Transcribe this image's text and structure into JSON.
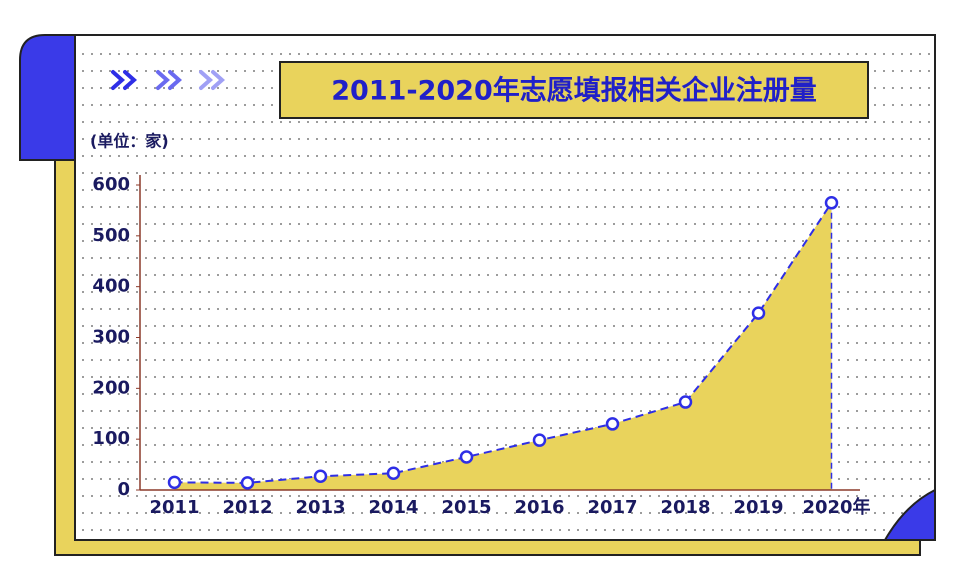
{
  "chart_data": {
    "type": "line",
    "title": "2011-2020年志愿填报相关企业注册量",
    "unit_label": "(单位：家)",
    "categories": [
      "2011",
      "2012",
      "2013",
      "2014",
      "2015",
      "2016",
      "2017",
      "2018",
      "2019",
      "2020年"
    ],
    "series": [
      {
        "name": "企业注册量",
        "color": "#2e2ee6",
        "values": [
          15,
          14,
          27,
          33,
          65,
          98,
          130,
          173,
          348,
          565
        ]
      }
    ],
    "area": true,
    "area_color": "#e9d35c",
    "ylim": [
      0,
      600
    ],
    "yticks": [
      0,
      100,
      200,
      300,
      400,
      500,
      600
    ]
  }
}
